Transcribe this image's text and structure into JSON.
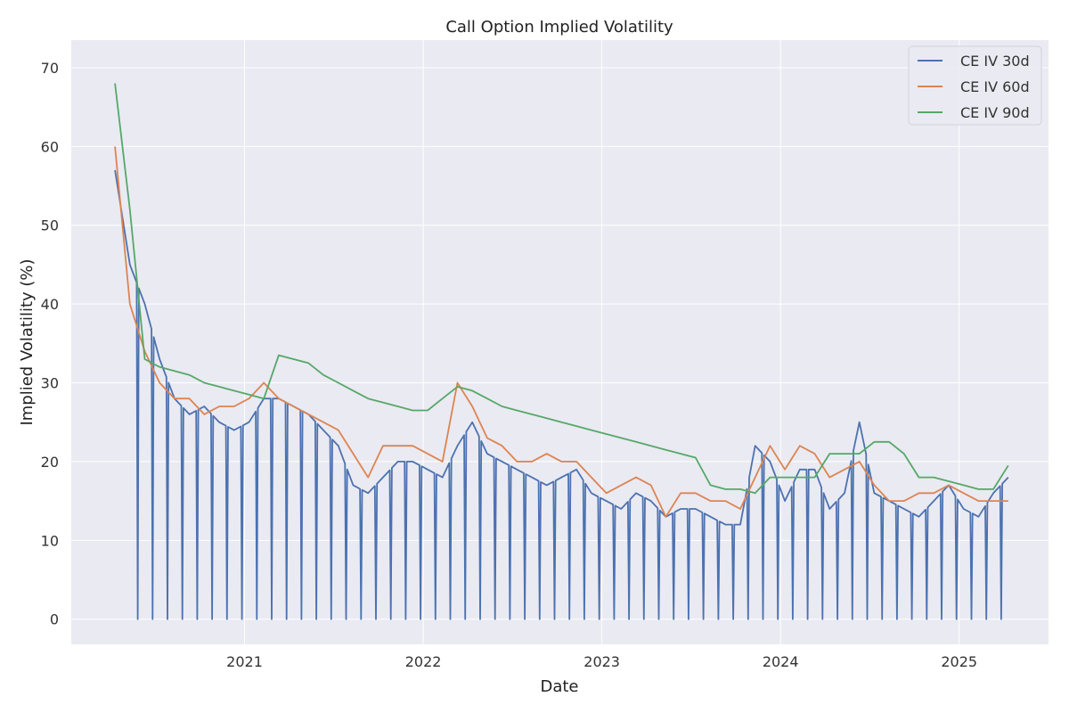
{
  "chart_data": {
    "type": "line",
    "title": "Call Option Implied Volatility",
    "xlabel": "Date",
    "ylabel": "Implied Volatility (%)",
    "ylim": [
      -3.2,
      73.5
    ],
    "xlim": [
      2020.03,
      2025.5
    ],
    "grid": true,
    "legend_position": "top-right",
    "x_ticks": [
      "2021",
      "2022",
      "2023",
      "2024",
      "2025"
    ],
    "y_ticks": [
      0,
      10,
      20,
      30,
      40,
      50,
      60,
      70
    ],
    "sampling": {
      "start_month": "2020-04",
      "frequency": "monthly",
      "day": 10
    },
    "zero_dips_30d": {
      "start_month": "2020-05",
      "end_month": "2025-03",
      "day": 26
    },
    "series": [
      {
        "name": "CE IV 30d",
        "color": "#4C72B0",
        "values": [
          57,
          45,
          40,
          33,
          28,
          26,
          27,
          25,
          24,
          25,
          28,
          28,
          27,
          26,
          24,
          22,
          17,
          16,
          18,
          20,
          20,
          19,
          18,
          22,
          25,
          21,
          20,
          19,
          18,
          17,
          18,
          19,
          16,
          15,
          14,
          16,
          15,
          13,
          14,
          14,
          13,
          12,
          12,
          22,
          20,
          15,
          19,
          19,
          14,
          16,
          25,
          16,
          15,
          14,
          13,
          15,
          17,
          14,
          13,
          16,
          18
        ]
      },
      {
        "name": "CE IV 60d",
        "color": "#DD8452",
        "values": [
          60,
          40,
          34,
          30,
          28,
          28,
          26,
          27,
          27,
          28,
          30,
          28,
          27,
          26,
          25,
          24,
          21,
          18,
          22,
          22,
          22,
          21,
          20,
          30,
          27,
          23,
          22,
          20,
          20,
          21,
          20,
          20,
          18,
          16,
          17,
          18,
          17,
          13,
          16,
          16,
          15,
          15,
          14,
          18,
          22,
          19,
          22,
          21,
          18,
          19,
          20,
          17,
          15,
          15,
          16,
          16,
          17,
          16,
          15,
          15,
          15
        ]
      },
      {
        "name": "CE IV 90d",
        "color": "#55A868",
        "values": [
          68,
          52,
          33,
          32,
          31.5,
          31,
          30,
          29.5,
          29,
          28.5,
          28,
          33.5,
          33,
          32.5,
          31,
          30,
          29,
          28,
          27.5,
          27,
          26.5,
          26.5,
          28,
          29.5,
          29,
          28,
          27,
          26.5,
          26,
          25.5,
          25,
          24.5,
          24,
          23.5,
          23,
          22.5,
          22,
          21.5,
          21,
          20.5,
          17,
          16.5,
          16.5,
          16,
          18,
          18,
          18,
          18,
          21,
          21,
          21,
          22.5,
          22.5,
          21,
          18,
          18,
          17.5,
          17,
          16.5,
          16.5,
          19.5
        ]
      }
    ]
  }
}
